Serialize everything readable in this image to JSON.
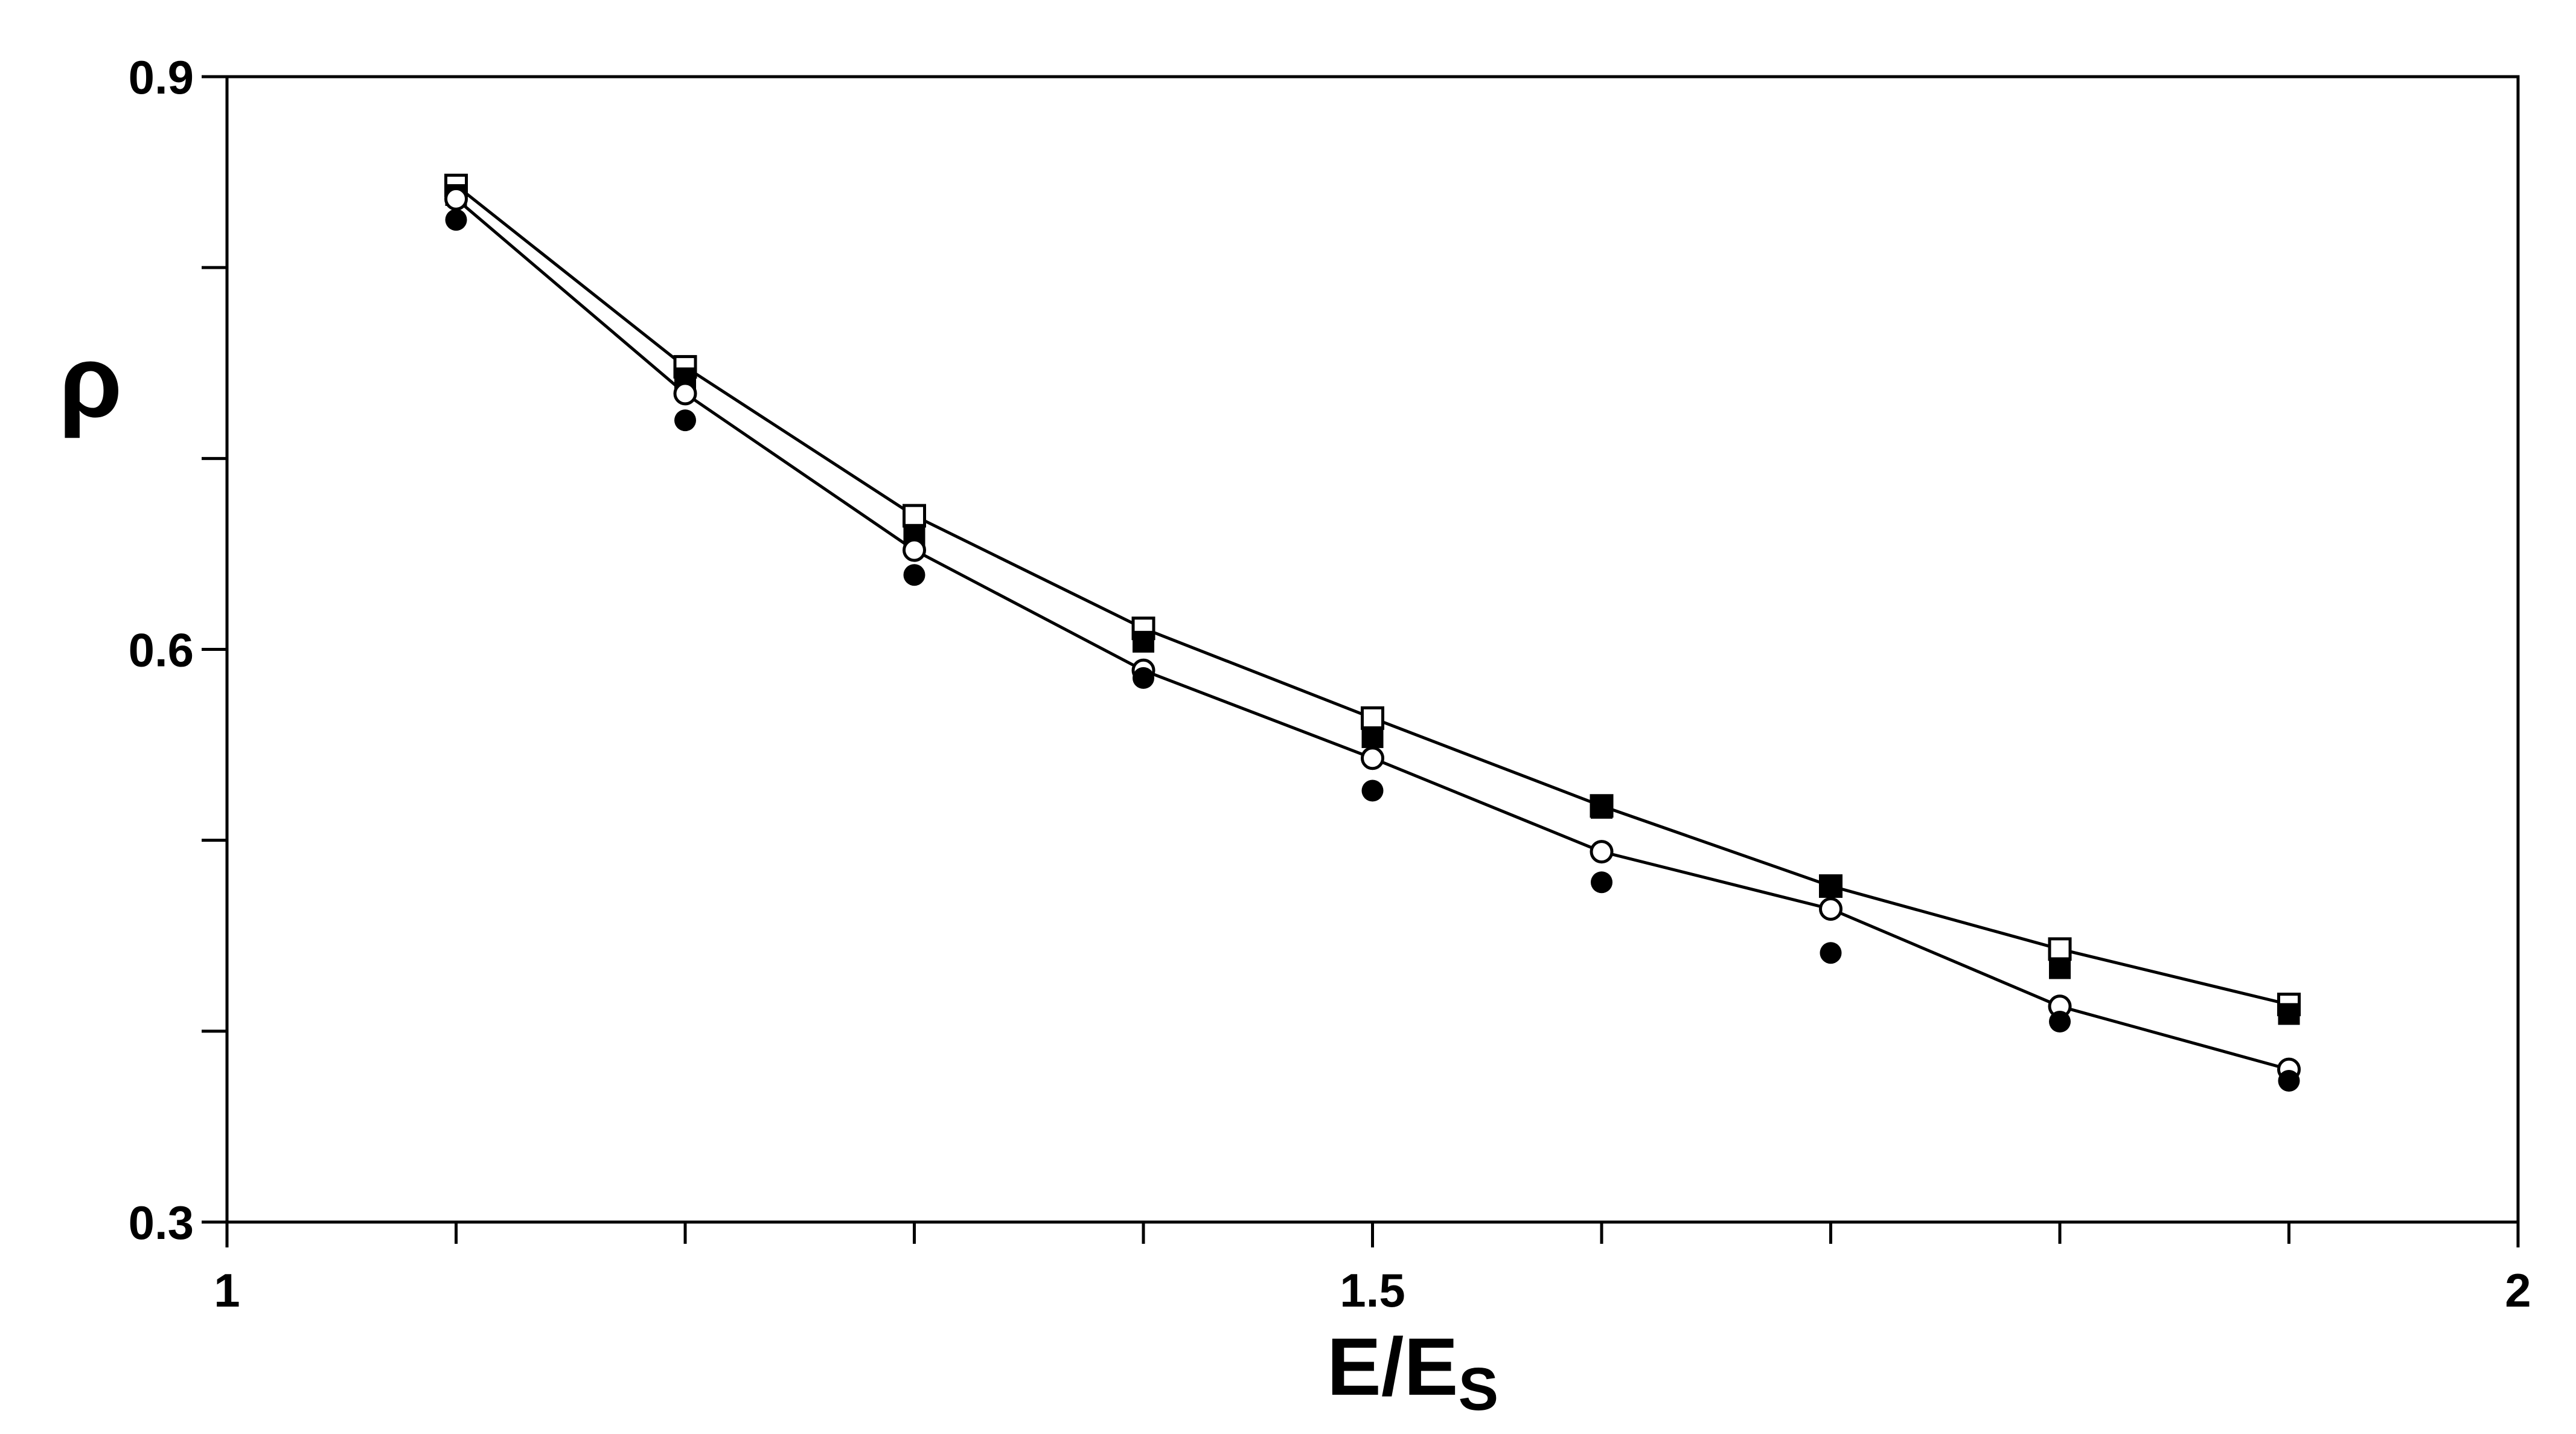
{
  "chart_data": {
    "type": "scatter",
    "title": "",
    "xlabel": {
      "main": "E/E",
      "subscript": "S"
    },
    "ylabel": "ρ",
    "xlim": [
      1,
      2
    ],
    "ylim": [
      0.3,
      0.9
    ],
    "x_ticks": [
      1,
      1.1,
      1.2,
      1.3,
      1.4,
      1.5,
      1.6,
      1.7,
      1.8,
      1.9,
      2
    ],
    "x_tick_labels": [
      {
        "value": 1,
        "text": "1"
      },
      {
        "value": 1.5,
        "text": "1.5"
      },
      {
        "value": 2,
        "text": "2"
      }
    ],
    "y_ticks": [
      0.3,
      0.4,
      0.5,
      0.6,
      0.7,
      0.8,
      0.9
    ],
    "y_tick_labels": [
      {
        "value": 0.3,
        "text": "0.3"
      },
      {
        "value": 0.6,
        "text": "0.6"
      },
      {
        "value": 0.9,
        "text": "0.9"
      }
    ],
    "grid": false,
    "legend": "none",
    "x": [
      1.1,
      1.2,
      1.3,
      1.4,
      1.5,
      1.6,
      1.7,
      1.8,
      1.9
    ],
    "series": [
      {
        "marker": "open-square",
        "line": true,
        "color": "#000000",
        "values": [
          0.843,
          0.748,
          0.67,
          0.611,
          0.564,
          0.518,
          0.476,
          0.443,
          0.414
        ]
      },
      {
        "marker": "filled-square",
        "line": false,
        "color": "#000000",
        "values": [
          0.838,
          0.742,
          0.66,
          0.604,
          0.554,
          0.517,
          0.476,
          0.433,
          0.409
        ]
      },
      {
        "marker": "open-circle",
        "line": true,
        "color": "#000000",
        "values": [
          0.836,
          0.734,
          0.652,
          0.589,
          0.543,
          0.494,
          0.464,
          0.413,
          0.38
        ]
      },
      {
        "marker": "filled-circle",
        "line": false,
        "color": "#000000",
        "values": [
          0.825,
          0.72,
          0.639,
          0.585,
          0.526,
          0.478,
          0.441,
          0.405,
          0.374
        ]
      }
    ]
  }
}
